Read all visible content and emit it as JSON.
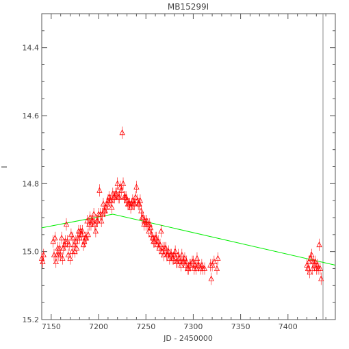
{
  "chart_data": {
    "type": "scatter",
    "title": "MB15299I",
    "xlabel": "JD - 2450000",
    "ylabel": "I",
    "xlim": [
      7140,
      7450
    ],
    "ylim": [
      15.2,
      14.3
    ],
    "y_inverted": true,
    "grid": false,
    "x_ticks": [
      7150,
      7200,
      7250,
      7300,
      7350,
      7400
    ],
    "y_ticks": [
      14.4,
      14.6,
      14.8,
      15.0,
      15.2
    ],
    "y_tick_labels": [
      "14.4",
      "14.6",
      "14.8",
      "15.0",
      "15.2"
    ],
    "vertical_marker_x": 7437,
    "colors": {
      "points": "#ff0000",
      "model": "#00ee00",
      "axes": "#555555",
      "marker_line": "#888888"
    },
    "series": [
      {
        "marker": "triangle-open",
        "color": "#ff0000",
        "x": [
          7140,
          7141,
          7142,
          7152,
          7153,
          7154,
          7155,
          7156,
          7157,
          7158,
          7159,
          7160,
          7161,
          7162,
          7163,
          7164,
          7165,
          7166,
          7167,
          7168,
          7169,
          7170,
          7171,
          7172,
          7173,
          7174,
          7175,
          7176,
          7177,
          7178,
          7179,
          7180,
          7181,
          7182,
          7183,
          7184,
          7185,
          7186,
          7187,
          7188,
          7189,
          7190,
          7191,
          7192,
          7193,
          7194,
          7195,
          7196,
          7197,
          7198,
          7199,
          7200,
          7201,
          7202,
          7203,
          7204,
          7205,
          7206,
          7207,
          7208,
          7209,
          7210,
          7211,
          7212,
          7213,
          7214,
          7215,
          7216,
          7217,
          7218,
          7219,
          7220,
          7221,
          7222,
          7223,
          7224,
          7225,
          7226,
          7227,
          7228,
          7229,
          7230,
          7231,
          7232,
          7233,
          7234,
          7235,
          7236,
          7237,
          7238,
          7239,
          7240,
          7241,
          7242,
          7243,
          7244,
          7245,
          7246,
          7247,
          7248,
          7249,
          7250,
          7251,
          7252,
          7253,
          7254,
          7255,
          7256,
          7257,
          7258,
          7259,
          7260,
          7261,
          7262,
          7263,
          7264,
          7265,
          7266,
          7267,
          7268,
          7269,
          7270,
          7271,
          7272,
          7273,
          7274,
          7275,
          7276,
          7277,
          7278,
          7279,
          7280,
          7281,
          7282,
          7283,
          7284,
          7285,
          7286,
          7287,
          7288,
          7289,
          7290,
          7291,
          7292,
          7293,
          7294,
          7295,
          7296,
          7297,
          7299,
          7300,
          7301,
          7302,
          7303,
          7304,
          7305,
          7306,
          7308,
          7309,
          7310,
          7312,
          7318,
          7319,
          7320,
          7322,
          7325,
          7326,
          7420,
          7421,
          7422,
          7423,
          7424,
          7425,
          7426,
          7427,
          7428,
          7429,
          7430,
          7431,
          7432,
          7433,
          7434,
          7435
        ],
        "y": [
          15.02,
          15.03,
          15.01,
          14.97,
          15.01,
          14.96,
          15.03,
          15.01,
          14.99,
          15.01,
          14.99,
          15.01,
          14.96,
          15.02,
          14.99,
          14.98,
          14.97,
          14.92,
          14.97,
          15.01,
          14.98,
          15.02,
          14.95,
          15.0,
          14.96,
          14.98,
          15.0,
          14.97,
          14.99,
          14.96,
          14.94,
          14.96,
          14.94,
          14.95,
          14.94,
          14.98,
          14.97,
          14.96,
          14.96,
          14.91,
          14.95,
          14.92,
          14.9,
          14.92,
          14.91,
          14.91,
          14.89,
          14.92,
          14.94,
          14.91,
          14.91,
          14.89,
          14.82,
          14.89,
          14.91,
          14.89,
          14.86,
          14.88,
          14.88,
          14.87,
          14.86,
          14.85,
          14.84,
          14.85,
          14.85,
          14.87,
          14.83,
          14.84,
          14.84,
          14.83,
          14.83,
          14.8,
          14.84,
          14.84,
          14.81,
          14.82,
          14.65,
          14.8,
          14.84,
          14.84,
          14.84,
          14.85,
          14.86,
          14.86,
          14.86,
          14.87,
          14.86,
          14.85,
          14.86,
          14.86,
          14.84,
          14.81,
          14.85,
          14.86,
          14.86,
          14.85,
          14.88,
          14.9,
          14.9,
          14.92,
          14.91,
          14.92,
          14.91,
          14.92,
          14.94,
          14.92,
          14.93,
          14.95,
          14.96,
          14.97,
          14.97,
          14.96,
          14.96,
          14.98,
          14.97,
          14.99,
          14.98,
          14.94,
          15.0,
          14.99,
          15.01,
          14.99,
          14.99,
          15.01,
          15.01,
          15.0,
          15.02,
          15.01,
          15.01,
          15.02,
          15.02,
          15.01,
          15.0,
          15.03,
          15.03,
          15.01,
          15.02,
          15.03,
          15.04,
          15.01,
          15.03,
          15.03,
          15.02,
          15.04,
          15.03,
          15.05,
          15.05,
          15.04,
          15.04,
          15.03,
          15.03,
          15.05,
          15.04,
          15.05,
          15.02,
          15.04,
          15.04,
          15.05,
          15.04,
          15.05,
          15.05,
          15.04,
          15.08,
          15.04,
          15.03,
          15.05,
          15.02,
          15.04,
          15.05,
          15.03,
          15.06,
          15.02,
          15.01,
          15.05,
          15.03,
          15.04,
          15.03,
          15.05,
          15.04,
          15.05,
          14.98,
          15.05,
          15.08
        ]
      }
    ],
    "model_line": {
      "x": [
        7140,
        7215,
        7450
      ],
      "y": [
        14.93,
        14.89,
        15.04
      ]
    }
  }
}
